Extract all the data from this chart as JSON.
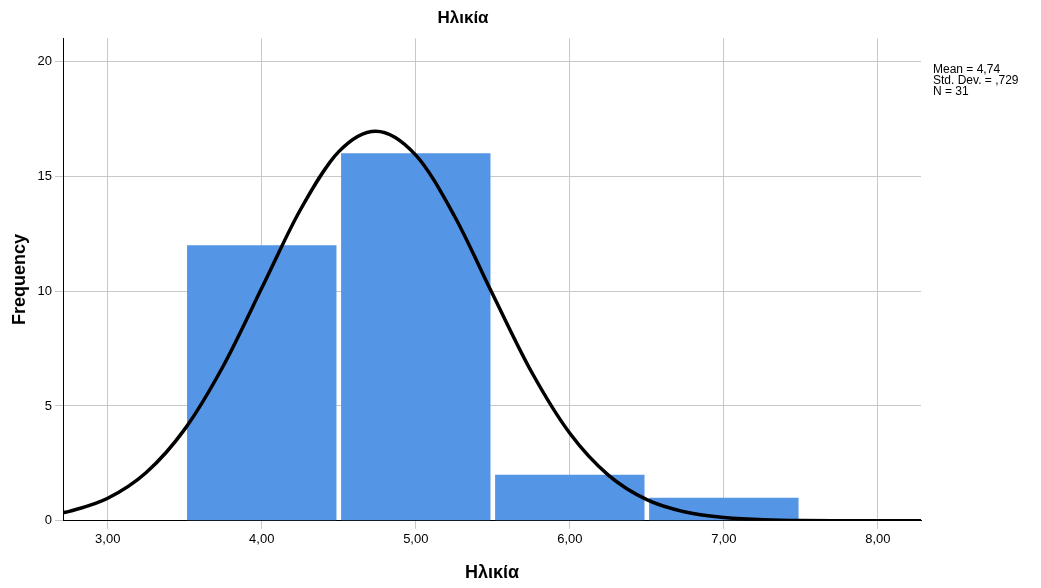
{
  "chart_data": {
    "type": "histogram",
    "title": "Ηλικία",
    "xlabel": "Ηλικία",
    "ylabel": "Frequency",
    "bins": [
      3.5,
      4.5,
      5.5,
      6.5,
      7.5
    ],
    "values": [
      12,
      16,
      2,
      1
    ],
    "color": "#5595e5",
    "series": [
      {
        "type": "line",
        "color": "#000000",
        "x": [
          2.71,
          2.75,
          3.0,
          3.25,
          3.5,
          3.75,
          4.0,
          4.25,
          4.5,
          4.74,
          5.0,
          5.25,
          5.5,
          5.75,
          6.0,
          6.25,
          6.5,
          6.75,
          7.0,
          7.5,
          8.0,
          8.28
        ],
        "values": [
          0.35,
          0.41,
          0.98,
          2.1,
          3.99,
          6.74,
          10.13,
          13.53,
          16.07,
          16.96,
          15.92,
          13.28,
          9.85,
          6.5,
          3.81,
          1.99,
          0.92,
          0.38,
          0.14,
          0.01,
          0,
          0
        ]
      }
    ],
    "xlim": [
      2.71,
      8.28
    ],
    "xticks": [
      {
        "value": 3,
        "label": "3,00"
      },
      {
        "value": 4,
        "label": "4,00"
      },
      {
        "value": 5,
        "label": "5,00"
      },
      {
        "value": 6,
        "label": "6,00"
      },
      {
        "value": 7,
        "label": "7,00"
      },
      {
        "value": 8,
        "label": "8,00"
      }
    ],
    "ylim": [
      0,
      21
    ],
    "yticks": [
      0,
      5,
      10,
      15,
      20
    ],
    "grid": true,
    "annotations": [
      "Mean = 4,74",
      "Std. Dev. = ,729",
      "N = 31"
    ]
  }
}
